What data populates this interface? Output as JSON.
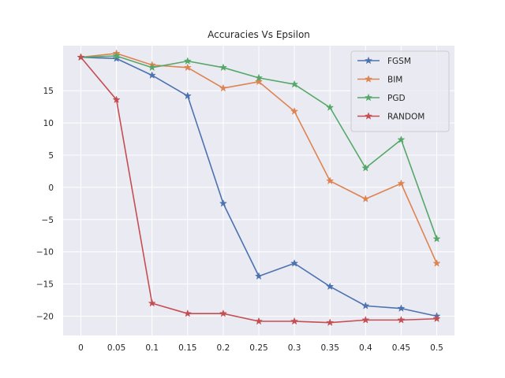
{
  "chart_data": {
    "type": "line",
    "title": "Accuracies Vs Epsilon",
    "xlabel": "",
    "ylabel": "",
    "categories": [
      "0",
      "0.05",
      "0.1",
      "0.15",
      "0.2",
      "0.25",
      "0.3",
      "0.35",
      "0.4",
      "0.45",
      "0.5"
    ],
    "yticks": [
      -20,
      -15,
      -10,
      -5,
      0,
      5,
      10,
      15
    ],
    "ylim": [
      -23,
      22
    ],
    "grid": true,
    "legend_position": "top-right",
    "series": [
      {
        "name": "FGSM",
        "color": "#4c72b0",
        "values": [
          20.2,
          20.0,
          17.4,
          14.2,
          -2.5,
          -13.8,
          -11.8,
          -15.4,
          -18.4,
          -18.8,
          -20.0
        ]
      },
      {
        "name": "BIM",
        "color": "#dd8452",
        "values": [
          20.2,
          20.8,
          19.0,
          18.6,
          15.4,
          16.4,
          11.8,
          1.0,
          -1.8,
          0.6,
          -11.8
        ]
      },
      {
        "name": "PGD",
        "color": "#55a868",
        "values": [
          20.2,
          20.4,
          18.6,
          19.6,
          18.6,
          17.0,
          16.0,
          12.4,
          3.0,
          7.4,
          -8.0
        ]
      },
      {
        "name": "RANDOM",
        "color": "#c44e52",
        "values": [
          20.2,
          13.6,
          -18.0,
          -19.6,
          -19.6,
          -20.8,
          -20.8,
          -21.0,
          -20.6,
          -20.6,
          -20.4
        ]
      }
    ]
  }
}
